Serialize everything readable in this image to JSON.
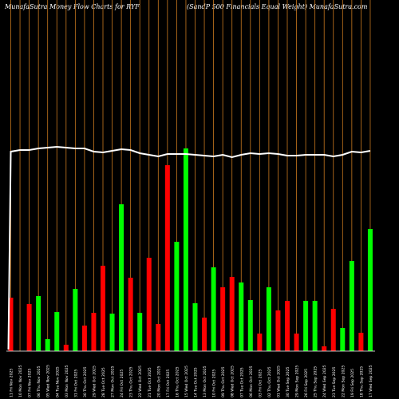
{
  "header": {
    "left_title": "MunafaSutra  Money Flow  Charts for RYF",
    "right_title": "(SandP 500   Financials Equal Weight) MunafaSutra.com"
  },
  "colors": {
    "background": "#000000",
    "up_bar": "#00ff00",
    "down_bar": "#ff0000",
    "grid_line": "#c8781e",
    "price_line": "#ffffff"
  },
  "chart_data": {
    "type": "bar",
    "title": "MunafaSutra  Money Flow  Charts for RYF",
    "subtitle": "(SandP 500   Financials Equal Weight) MunafaSutra.com",
    "xlabel": "",
    "ylabel": "",
    "grid": true,
    "categories": [
      "11 Fri Nov 2025",
      "10 Mon Nov 2025",
      "07 Fri Nov 2025",
      "06 Thu Nov 2025",
      "05 Wed Nov 2025",
      "04 Tue Nov 2025",
      "03 Mon Nov 2025",
      "31 Fri Oct 2025",
      "30 Thu Oct 2025",
      "29 Wed Oct 2025",
      "28 Tue Oct 2025",
      "27 Mon Oct 2025",
      "24 Fri Oct 2025",
      "23 Thu Oct 2025",
      "22 Wed Oct 2025",
      "21 Tue Oct 2025",
      "20 Mon Oct 2025",
      "17 Fri Oct 2025",
      "16 Thu Oct 2025",
      "15 Wed Oct 2025",
      "14 Tue Oct 2025",
      "13 Mon Oct 2025",
      "10 Fri Oct 2025",
      "09 Thu Oct 2025",
      "08 Wed Oct 2025",
      "07 Tue Oct 2025",
      "06 Mon Oct 2025",
      "03 Fri Oct 2025",
      "02 Thu Oct 2025",
      "01 Wed Oct 2025",
      "30 Tue Sep 2025",
      "29 Mon Sep 2025",
      "26 Fri Sep 2025",
      "25 Thu Sep 2025",
      "24 Wed Sep 2025",
      "23 Tue Sep 2025",
      "22 Mon Sep 2025",
      "19 Fri Sep 2025",
      "18 Thu Sep 2025",
      "17 Wed Sep 2025"
    ],
    "tick_labels": [
      "11 Fri Nov 2025",
      "10 Mon Nov 2025",
      "07 Fri Nov 2025",
      "06 Thu Nov 2025",
      "05 Wed Nov 2025",
      "04 Tue Nov 2025",
      "03 Mon Nov 2025",
      "31 Fri Oct 2025",
      "30 Thu Oct 2025",
      "29 Wed Oct 2025",
      "28 Tue Oct 2025",
      "27 Mon Oct 2025",
      "24 Fri Oct 2025",
      "23 Thu Oct 2025",
      "22 Wed Oct 2025",
      "21 Tue Oct 2025",
      "20 Mon Oct 2025",
      "17 Fri Oct 2025",
      "16 Thu Oct 2025",
      "15 Wed Oct 2025",
      "14 Tue Oct 2025",
      "13 Mon Oct 2025",
      "10 Fri Oct 2025",
      "09 Thu Oct 2025",
      "08 Wed Oct 2025",
      "07 Tue Oct 2025",
      "06 Mon Oct 2025",
      "03 Fri Oct 2025",
      "02 Thu Oct 2025",
      "01 Wed Oct 2025",
      "30 Tue Sep 2025",
      "29 Mon Sep 2025",
      "26 Fri Sep 2025",
      "25 Thu Sep 2025",
      "24 Wed Sep 2025",
      "23 Tue Sep 2025",
      "22 Mon Sep 2025",
      "19 Fri Sep 2025",
      "18 Thu Sep 2025",
      "17 Wed Sep 2025"
    ],
    "series": [
      {
        "values": [
          67,
          0,
          59,
          69,
          15,
          49,
          8,
          78,
          32,
          48,
          107,
          47,
          184,
          92,
          48,
          117,
          34,
          233,
          137,
          254,
          60,
          42,
          105,
          80,
          93,
          86,
          64,
          22,
          80,
          51,
          63,
          22,
          63,
          63,
          6,
          53,
          29,
          113,
          23,
          153
        ],
        "directions": [
          "down",
          "up",
          "down",
          "up",
          "up",
          "up",
          "down",
          "up",
          "down",
          "down",
          "down",
          "up",
          "up",
          "down",
          "up",
          "down",
          "down",
          "down",
          "up",
          "up",
          "up",
          "down",
          "up",
          "down",
          "down",
          "up",
          "up",
          "down",
          "up",
          "down",
          "down",
          "down",
          "up",
          "up",
          "down",
          "down",
          "up",
          "up",
          "down",
          "up"
        ]
      },
      {
        "type": "line",
        "values": [
          250,
          252,
          252,
          254,
          255,
          256,
          255,
          254,
          254,
          250,
          249,
          251,
          253,
          252,
          248,
          246,
          244,
          247,
          247,
          247,
          246,
          245,
          244,
          246,
          243,
          246,
          248,
          247,
          248,
          247,
          245,
          245,
          246,
          246,
          246,
          244,
          246,
          250,
          249,
          251
        ]
      }
    ],
    "ylim": [
      0,
      440
    ],
    "price_ylim": [
      0,
      440
    ]
  }
}
